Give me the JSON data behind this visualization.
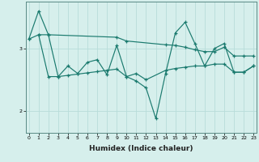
{
  "xlabel": "Humidex (Indice chaleur)",
  "background_color": "#d6efec",
  "grid_color": "#b8ddd9",
  "line_color": "#1a7a6e",
  "spine_color": "#5a8a85",
  "x_ticks": [
    0,
    1,
    2,
    3,
    4,
    5,
    6,
    7,
    8,
    9,
    10,
    11,
    12,
    13,
    14,
    15,
    16,
    17,
    18,
    19,
    20,
    21,
    22,
    23
  ],
  "y_ticks": [
    2,
    3
  ],
  "ylim": [
    1.65,
    3.75
  ],
  "xlim": [
    -0.3,
    23.3
  ],
  "series1_x": [
    0,
    1,
    2,
    3,
    4,
    5,
    6,
    7,
    8,
    9,
    10,
    11,
    12,
    13,
    14,
    15,
    16,
    17,
    18,
    19,
    20,
    21,
    22,
    23
  ],
  "series1_y": [
    3.15,
    3.6,
    3.22,
    2.55,
    2.72,
    2.6,
    2.78,
    2.82,
    2.58,
    3.05,
    2.55,
    2.48,
    2.37,
    1.88,
    2.6,
    3.25,
    3.42,
    3.08,
    2.72,
    3.0,
    3.08,
    2.62,
    2.62,
    2.72
  ],
  "series2_x": [
    0,
    1,
    2,
    9,
    10,
    14,
    15,
    16,
    17,
    18,
    19,
    20,
    21,
    22,
    23
  ],
  "series2_y": [
    3.15,
    3.22,
    3.22,
    3.18,
    3.12,
    3.06,
    3.05,
    3.02,
    2.98,
    2.95,
    2.95,
    3.02,
    2.88,
    2.88,
    2.88
  ],
  "series3_x": [
    1,
    2,
    3,
    4,
    5,
    6,
    7,
    8,
    9,
    10,
    11,
    12,
    14,
    15,
    16,
    17,
    18,
    19,
    20,
    21,
    22,
    23
  ],
  "series3_y": [
    3.22,
    2.55,
    2.55,
    2.57,
    2.59,
    2.61,
    2.63,
    2.65,
    2.67,
    2.55,
    2.6,
    2.5,
    2.65,
    2.68,
    2.7,
    2.72,
    2.72,
    2.75,
    2.75,
    2.62,
    2.62,
    2.72
  ]
}
